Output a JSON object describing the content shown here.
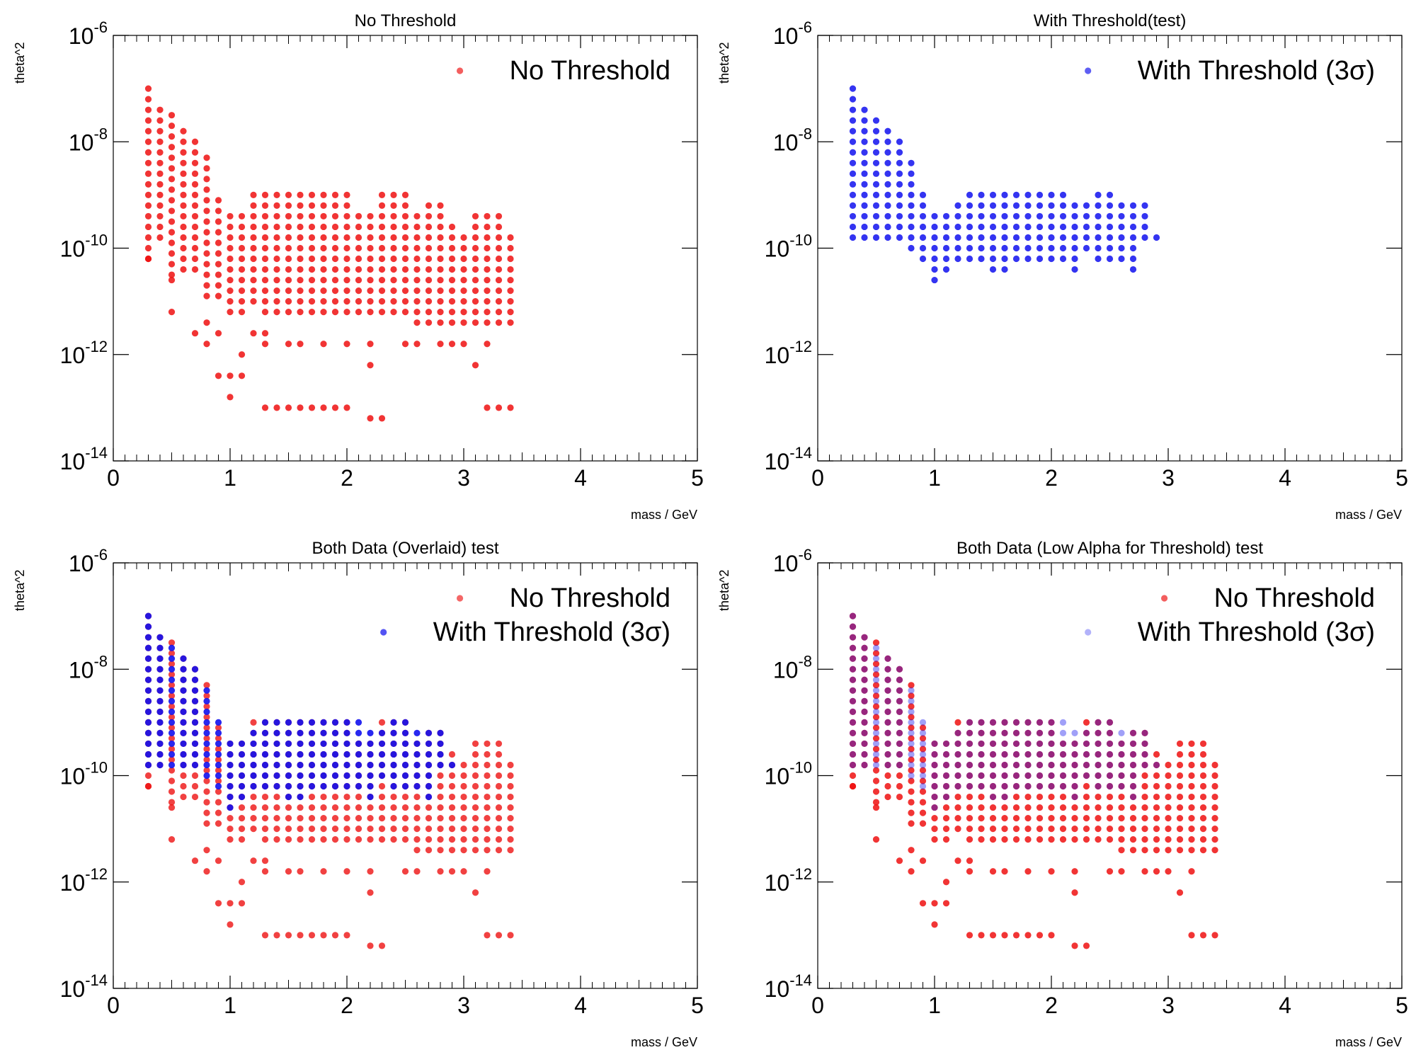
{
  "colors": {
    "no_threshold": "#ee1111",
    "with_threshold": "#1111ee",
    "with_threshold_low_alpha": "#1111ee"
  },
  "chart_data": [
    {
      "type": "scatter",
      "title": "No Threshold",
      "xlabel": "mass / GeV",
      "ylabel": "theta^2",
      "xlim": [
        0,
        5
      ],
      "ylim": [
        1e-14,
        1e-06
      ],
      "yscale": "log",
      "x_ticks": [
        "0",
        "1",
        "2",
        "3",
        "4",
        "5"
      ],
      "y_ticks": [
        {
          "base": "10",
          "exp": "-14"
        },
        {
          "base": "10",
          "exp": "-12"
        },
        {
          "base": "10",
          "exp": "-10"
        },
        {
          "base": "10",
          "exp": "-8"
        },
        {
          "base": "10",
          "exp": "-6"
        }
      ],
      "legend_position": "top-right",
      "series": [
        {
          "name": "No Threshold",
          "color_key": "no_threshold",
          "ref": "no_threshold",
          "opacity": 0.85
        }
      ]
    },
    {
      "type": "scatter",
      "title": "With Threshold(test)",
      "xlabel": "mass / GeV",
      "ylabel": "theta^2",
      "xlim": [
        0,
        5
      ],
      "ylim": [
        1e-14,
        1e-06
      ],
      "yscale": "log",
      "x_ticks": [
        "0",
        "1",
        "2",
        "3",
        "4",
        "5"
      ],
      "y_ticks": [
        {
          "base": "10",
          "exp": "-14"
        },
        {
          "base": "10",
          "exp": "-12"
        },
        {
          "base": "10",
          "exp": "-10"
        },
        {
          "base": "10",
          "exp": "-8"
        },
        {
          "base": "10",
          "exp": "-6"
        }
      ],
      "legend_position": "top-right",
      "series": [
        {
          "name": "With Threshold (3σ)",
          "color_key": "with_threshold",
          "ref": "with_threshold",
          "opacity": 0.85
        }
      ]
    },
    {
      "type": "scatter",
      "title": "Both Data (Overlaid) test",
      "xlabel": "mass / GeV",
      "ylabel": "theta^2",
      "xlim": [
        0,
        5
      ],
      "ylim": [
        1e-14,
        1e-06
      ],
      "yscale": "log",
      "x_ticks": [
        "0",
        "1",
        "2",
        "3",
        "4",
        "5"
      ],
      "y_ticks": [
        {
          "base": "10",
          "exp": "-14"
        },
        {
          "base": "10",
          "exp": "-12"
        },
        {
          "base": "10",
          "exp": "-10"
        },
        {
          "base": "10",
          "exp": "-8"
        },
        {
          "base": "10",
          "exp": "-6"
        }
      ],
      "legend_position": "top-right",
      "series": [
        {
          "name": "No Threshold",
          "color_key": "no_threshold",
          "ref": "no_threshold",
          "opacity": 0.8
        },
        {
          "name": "With Threshold (3σ)",
          "color_key": "with_threshold",
          "ref": "with_threshold",
          "opacity": 0.9
        }
      ]
    },
    {
      "type": "scatter",
      "title": "Both Data (Low Alpha for Threshold) test",
      "xlabel": "mass / GeV",
      "ylabel": "theta^2",
      "xlim": [
        0,
        5
      ],
      "ylim": [
        1e-14,
        1e-06
      ],
      "yscale": "log",
      "x_ticks": [
        "0",
        "1",
        "2",
        "3",
        "4",
        "5"
      ],
      "y_ticks": [
        {
          "base": "10",
          "exp": "-14"
        },
        {
          "base": "10",
          "exp": "-12"
        },
        {
          "base": "10",
          "exp": "-10"
        },
        {
          "base": "10",
          "exp": "-8"
        },
        {
          "base": "10",
          "exp": "-6"
        }
      ],
      "legend_position": "top-right",
      "series": [
        {
          "name": "No Threshold",
          "color_key": "no_threshold",
          "ref": "no_threshold",
          "opacity": 0.85
        },
        {
          "name": "With Threshold (3σ)",
          "color_key": "with_threshold_low_alpha",
          "ref": "with_threshold",
          "opacity": 0.4
        }
      ]
    }
  ],
  "datasets": {
    "no_threshold": {
      "x": [
        0.3,
        0.4,
        0.5,
        0.6,
        0.7,
        0.8,
        0.9,
        1.0,
        1.1,
        1.2,
        1.3,
        1.4,
        1.5,
        1.6,
        1.7,
        1.8,
        1.9,
        2.0,
        2.1,
        2.2,
        2.3,
        2.4,
        2.5,
        2.6,
        2.7,
        2.8,
        2.9,
        3.0,
        3.1,
        3.2,
        3.3,
        3.4
      ],
      "y_exponent_top": [
        -7.0,
        -7.3,
        -7.5,
        -7.8,
        -8.0,
        -8.3,
        -9.0,
        -9.3,
        -9.3,
        -9.0,
        -9.0,
        -9.0,
        -9.0,
        -9.0,
        -9.0,
        -9.0,
        -9.0,
        -9.0,
        -9.3,
        -9.3,
        -9.0,
        -9.0,
        -9.0,
        -9.3,
        -9.2,
        -9.2,
        -9.5,
        -9.7,
        -9.4,
        -9.4,
        -9.4,
        -9.7
      ],
      "y_exponent_bottom": [
        -10.2,
        -9.8,
        -10.5,
        -10.4,
        -10.4,
        -10.9,
        -10.9,
        -11.2,
        -11.2,
        -11.0,
        -11.2,
        -11.2,
        -11.2,
        -11.2,
        -11.2,
        -11.2,
        -11.2,
        -11.2,
        -11.2,
        -11.2,
        -11.2,
        -11.2,
        -11.2,
        -11.4,
        -11.4,
        -11.4,
        -11.4,
        -11.4,
        -11.4,
        -11.4,
        -11.4,
        -11.4
      ],
      "y_exponent_outliers": [
        [
          0.3,
          -10.2
        ],
        [
          0.5,
          -10.6
        ],
        [
          0.5,
          -11.2
        ],
        [
          0.7,
          -11.6
        ],
        [
          0.8,
          -11.4
        ],
        [
          0.8,
          -11.8
        ],
        [
          0.9,
          -11.6
        ],
        [
          0.9,
          -12.4
        ],
        [
          1.0,
          -12.4
        ],
        [
          1.0,
          -12.8
        ],
        [
          1.1,
          -12.4
        ],
        [
          1.1,
          -12.0
        ],
        [
          1.2,
          -11.6
        ],
        [
          1.3,
          -11.6
        ],
        [
          1.3,
          -11.8
        ],
        [
          1.5,
          -11.8
        ],
        [
          1.6,
          -11.8
        ],
        [
          1.8,
          -11.8
        ],
        [
          2.0,
          -11.8
        ],
        [
          2.2,
          -11.8
        ],
        [
          2.2,
          -12.2
        ],
        [
          2.5,
          -11.8
        ],
        [
          2.6,
          -11.8
        ],
        [
          2.8,
          -11.8
        ],
        [
          2.9,
          -11.8
        ],
        [
          3.0,
          -11.8
        ],
        [
          3.1,
          -12.2
        ],
        [
          3.2,
          -11.8
        ],
        [
          1.3,
          -13.0
        ],
        [
          1.4,
          -13.0
        ],
        [
          1.5,
          -13.0
        ],
        [
          1.6,
          -13.0
        ],
        [
          1.7,
          -13.0
        ],
        [
          1.8,
          -13.0
        ],
        [
          1.9,
          -13.0
        ],
        [
          2.0,
          -13.0
        ],
        [
          2.2,
          -13.2
        ],
        [
          2.3,
          -13.2
        ],
        [
          3.2,
          -13.0
        ],
        [
          3.3,
          -13.0
        ],
        [
          3.4,
          -13.0
        ]
      ],
      "y_step": 0.2
    },
    "with_threshold": {
      "x": [
        0.3,
        0.4,
        0.5,
        0.6,
        0.7,
        0.8,
        0.9,
        1.0,
        1.1,
        1.2,
        1.3,
        1.4,
        1.5,
        1.6,
        1.7,
        1.8,
        1.9,
        2.0,
        2.1,
        2.2,
        2.3,
        2.4,
        2.5,
        2.6,
        2.7,
        2.8,
        2.9
      ],
      "y_exponent_top": [
        -7.0,
        -7.3,
        -7.5,
        -7.8,
        -8.0,
        -8.3,
        -9.0,
        -9.3,
        -9.3,
        -9.2,
        -9.0,
        -9.0,
        -9.0,
        -9.0,
        -9.0,
        -9.0,
        -9.0,
        -9.0,
        -9.0,
        -9.2,
        -9.2,
        -9.0,
        -9.0,
        -9.2,
        -9.2,
        -9.2,
        -9.8
      ],
      "y_exponent_bottom": [
        -9.8,
        -9.8,
        -9.8,
        -9.8,
        -9.8,
        -10.0,
        -10.2,
        -10.6,
        -10.4,
        -10.2,
        -10.2,
        -10.2,
        -10.4,
        -10.4,
        -10.2,
        -10.2,
        -10.2,
        -10.2,
        -10.2,
        -10.4,
        -10.0,
        -10.2,
        -10.2,
        -10.2,
        -10.4,
        -9.8,
        -9.8
      ],
      "y_step": 0.2
    }
  }
}
